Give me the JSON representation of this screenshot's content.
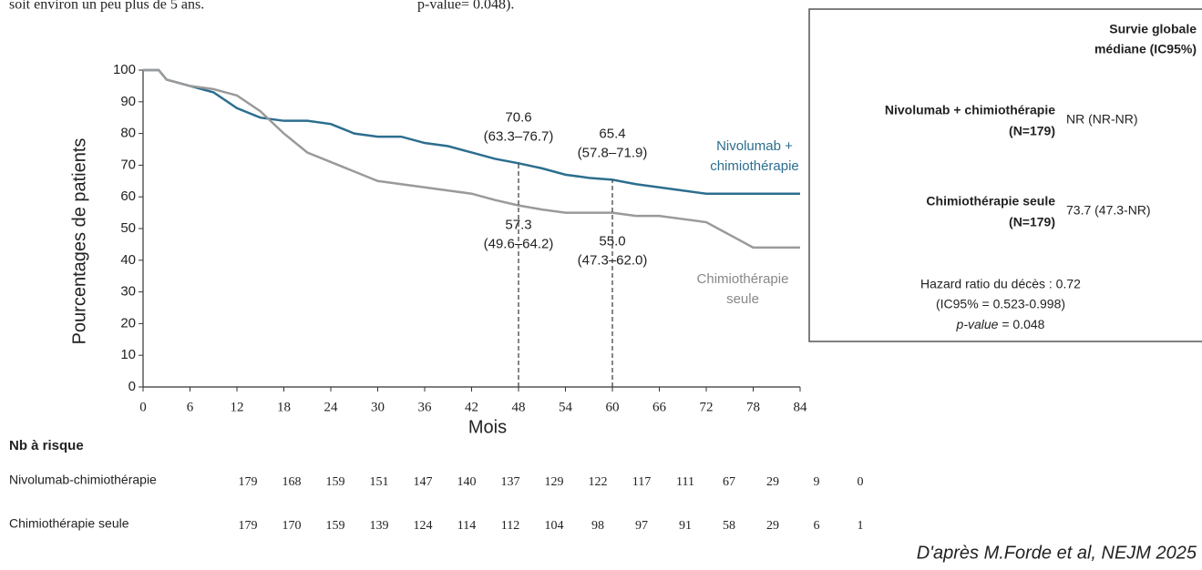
{
  "intro_text": [
    "soit environ un peu plus de 5 ans.",
    "p-value= 0.048)."
  ],
  "chart_data": {
    "type": "line",
    "ylabel": "Pourcentages de patients",
    "xlabel": "Mois",
    "x": [
      0,
      2,
      3,
      6,
      9,
      12,
      15,
      18,
      21,
      24,
      27,
      30,
      33,
      36,
      39,
      42,
      45,
      48,
      51,
      54,
      57,
      60,
      63,
      66,
      69,
      72,
      75,
      78,
      81,
      84
    ],
    "series": [
      {
        "name": "Nivolumab + chimiothérapie",
        "color": "#2c6e8f",
        "values": [
          100,
          100,
          97,
          95,
          93,
          88,
          85,
          84,
          84,
          83,
          80,
          79,
          79,
          77,
          76,
          74,
          72,
          70.6,
          69,
          67,
          66,
          65.4,
          64,
          63,
          62,
          61,
          61,
          61,
          61,
          61
        ],
        "annotations": [
          {
            "x": 48,
            "label": "70.6",
            "ci": "(63.3–76.7)"
          },
          {
            "x": 60,
            "label": "65.4",
            "ci": "(57.8–71.9)"
          }
        ]
      },
      {
        "name": "Chimiothérapie seule",
        "color": "#9a9a9a",
        "values": [
          100,
          100,
          97,
          95,
          94,
          92,
          87,
          80,
          74,
          71,
          68,
          65,
          64,
          63,
          62,
          61,
          59,
          57.3,
          56,
          55,
          55,
          55.0,
          54,
          54,
          53,
          52,
          48,
          44,
          44,
          44
        ],
        "annotations": [
          {
            "x": 48,
            "label": "57.3",
            "ci": "(49.6–64.2)"
          },
          {
            "x": 60,
            "label": "55.0",
            "ci": "(47.3–62.0)"
          }
        ]
      }
    ],
    "xlim": [
      0,
      84
    ],
    "xticks": [
      0,
      6,
      12,
      18,
      24,
      30,
      36,
      42,
      48,
      54,
      60,
      66,
      72,
      78,
      84
    ],
    "ylim": [
      0,
      100
    ],
    "yticks": [
      0,
      10,
      20,
      30,
      40,
      50,
      60,
      70,
      80,
      90,
      100
    ]
  },
  "summary_box": {
    "header": [
      "Survie globale",
      "médiane (IC95%)"
    ],
    "rows": [
      {
        "label": "Nivolumab + chimiothérapie",
        "n": "(N=179)",
        "value": "NR (NR-NR)"
      },
      {
        "label": "Chimiothérapie seule",
        "n": "(N=179)",
        "value": "73.7 (47.3-NR)"
      }
    ],
    "footer": [
      "Hazard ratio du décès : 0.72",
      "(IC95% = 0.523-0.998)"
    ],
    "p_label": "p-value",
    "p_value": "= 0.048"
  },
  "risk_table": {
    "title": "Nb à risque",
    "rows": [
      {
        "label": "Nivolumab-chimiothérapie",
        "values": [
          "179",
          "168",
          "159",
          "151",
          "147",
          "140",
          "137",
          "129",
          "122",
          "117",
          "111",
          "67",
          "29",
          "9",
          "0"
        ]
      },
      {
        "label": "Chimiothérapie seule",
        "values": [
          "179",
          "170",
          "159",
          "139",
          "124",
          "114",
          "112",
          "104",
          "98",
          "97",
          "91",
          "58",
          "29",
          "6",
          "1"
        ]
      }
    ]
  },
  "source": "D'après M.Forde et al, NEJM 2025"
}
